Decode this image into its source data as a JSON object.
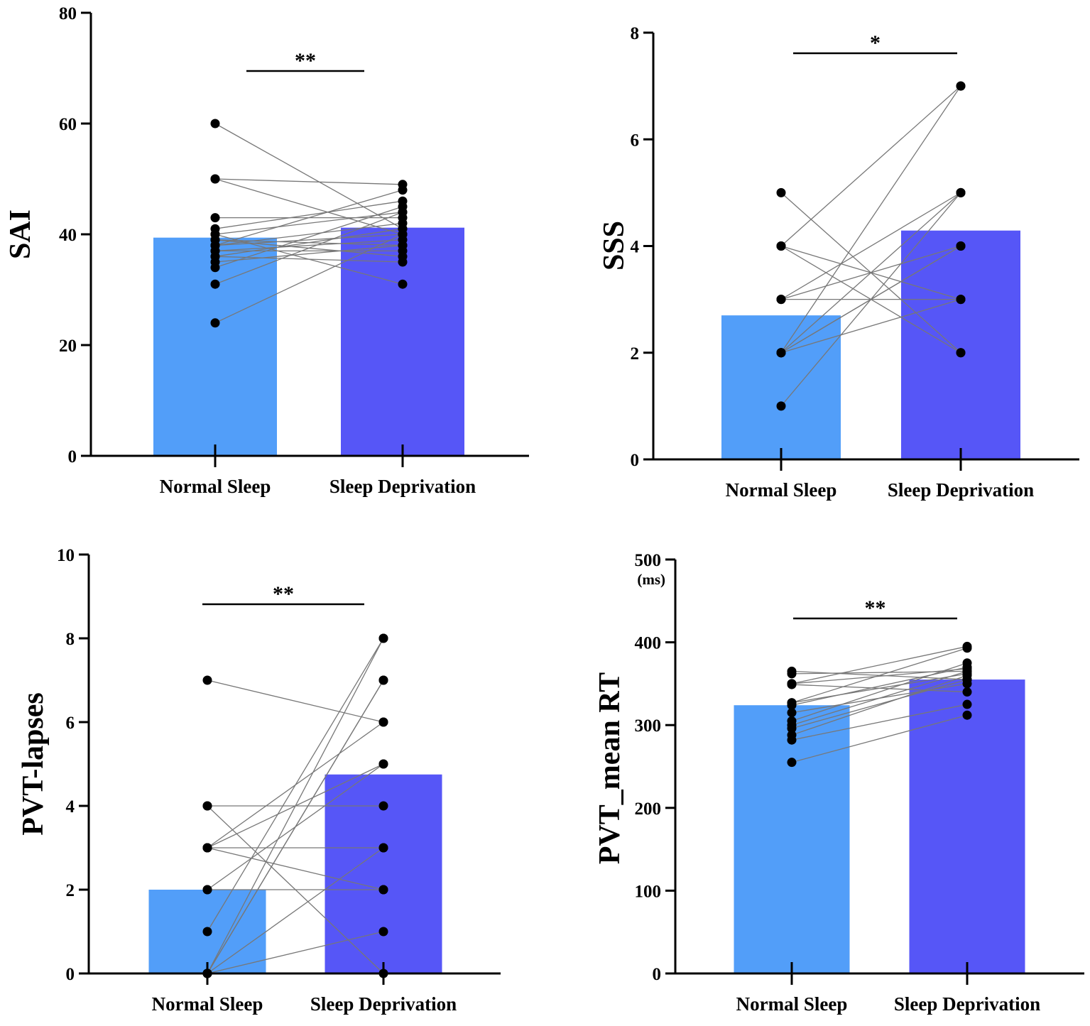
{
  "colors": {
    "normal": "#529ef9",
    "deprivation": "#5656f7",
    "point": "#000000",
    "pair_line": "#777777"
  },
  "chart_data": [
    {
      "type": "bar",
      "ylabel": "SAI",
      "categories": [
        "Normal Sleep",
        "Sleep Deprivation"
      ],
      "values": [
        39.4,
        41.2
      ],
      "ylim": [
        0,
        80
      ],
      "yticks": [
        "0",
        "20",
        "40",
        "60",
        "80"
      ],
      "significance": "**",
      "paired_points": [
        [
          60,
          41
        ],
        [
          50,
          49
        ],
        [
          50,
          40
        ],
        [
          43,
          43
        ],
        [
          41,
          46
        ],
        [
          40,
          44
        ],
        [
          39,
          38
        ],
        [
          39,
          36
        ],
        [
          38,
          42
        ],
        [
          38,
          40
        ],
        [
          37,
          37
        ],
        [
          37,
          39
        ],
        [
          36,
          41
        ],
        [
          36,
          35
        ],
        [
          35,
          38
        ],
        [
          34,
          45
        ],
        [
          31,
          44
        ],
        [
          24,
          40
        ],
        [
          40,
          31
        ],
        [
          38,
          48
        ]
      ]
    },
    {
      "type": "bar",
      "ylabel": "SSS",
      "categories": [
        "Normal Sleep",
        "Sleep Deprivation"
      ],
      "values": [
        2.7,
        4.29
      ],
      "ylim": [
        0,
        8
      ],
      "yticks": [
        "0",
        "2",
        "4",
        "6",
        "8"
      ],
      "significance": "*",
      "paired_points": [
        [
          5,
          2
        ],
        [
          4,
          7
        ],
        [
          4,
          3
        ],
        [
          4,
          2
        ],
        [
          3,
          5
        ],
        [
          3,
          4
        ],
        [
          3,
          3
        ],
        [
          2,
          7
        ],
        [
          2,
          5
        ],
        [
          2,
          4
        ],
        [
          2,
          4
        ],
        [
          2,
          3
        ],
        [
          1,
          5
        ]
      ]
    },
    {
      "type": "bar",
      "ylabel": "PVT-lapses",
      "categories": [
        "Normal Sleep",
        "Sleep Deprivation"
      ],
      "values": [
        2.0,
        4.75
      ],
      "ylim": [
        0,
        10
      ],
      "yticks": [
        "0",
        "2",
        "4",
        "6",
        "8",
        "10"
      ],
      "significance": "**",
      "paired_points": [
        [
          7,
          6
        ],
        [
          4,
          4
        ],
        [
          4,
          0
        ],
        [
          3,
          6
        ],
        [
          3,
          5
        ],
        [
          3,
          3
        ],
        [
          3,
          2
        ],
        [
          2,
          5
        ],
        [
          2,
          2
        ],
        [
          1,
          8
        ],
        [
          0,
          8
        ],
        [
          0,
          7
        ],
        [
          0,
          7
        ],
        [
          0,
          3
        ],
        [
          0,
          1
        ]
      ]
    },
    {
      "type": "bar",
      "ylabel": "PVT_mean RT",
      "yunit": "(ms)",
      "categories": [
        "Normal Sleep",
        "Sleep Deprivation"
      ],
      "values": [
        324,
        355
      ],
      "ylim": [
        0,
        500
      ],
      "yticks": [
        "0",
        "100",
        "200",
        "300",
        "400",
        "500"
      ],
      "significance": "**",
      "paired_points": [
        [
          365,
          355
        ],
        [
          362,
          365
        ],
        [
          350,
          395
        ],
        [
          349,
          340
        ],
        [
          327,
          393
        ],
        [
          324,
          370
        ],
        [
          315,
          350
        ],
        [
          305,
          375
        ],
        [
          300,
          365
        ],
        [
          296,
          355
        ],
        [
          288,
          360
        ],
        [
          282,
          325
        ],
        [
          255,
          312
        ],
        [
          350,
          368
        ],
        [
          327,
          362
        ]
      ]
    }
  ]
}
